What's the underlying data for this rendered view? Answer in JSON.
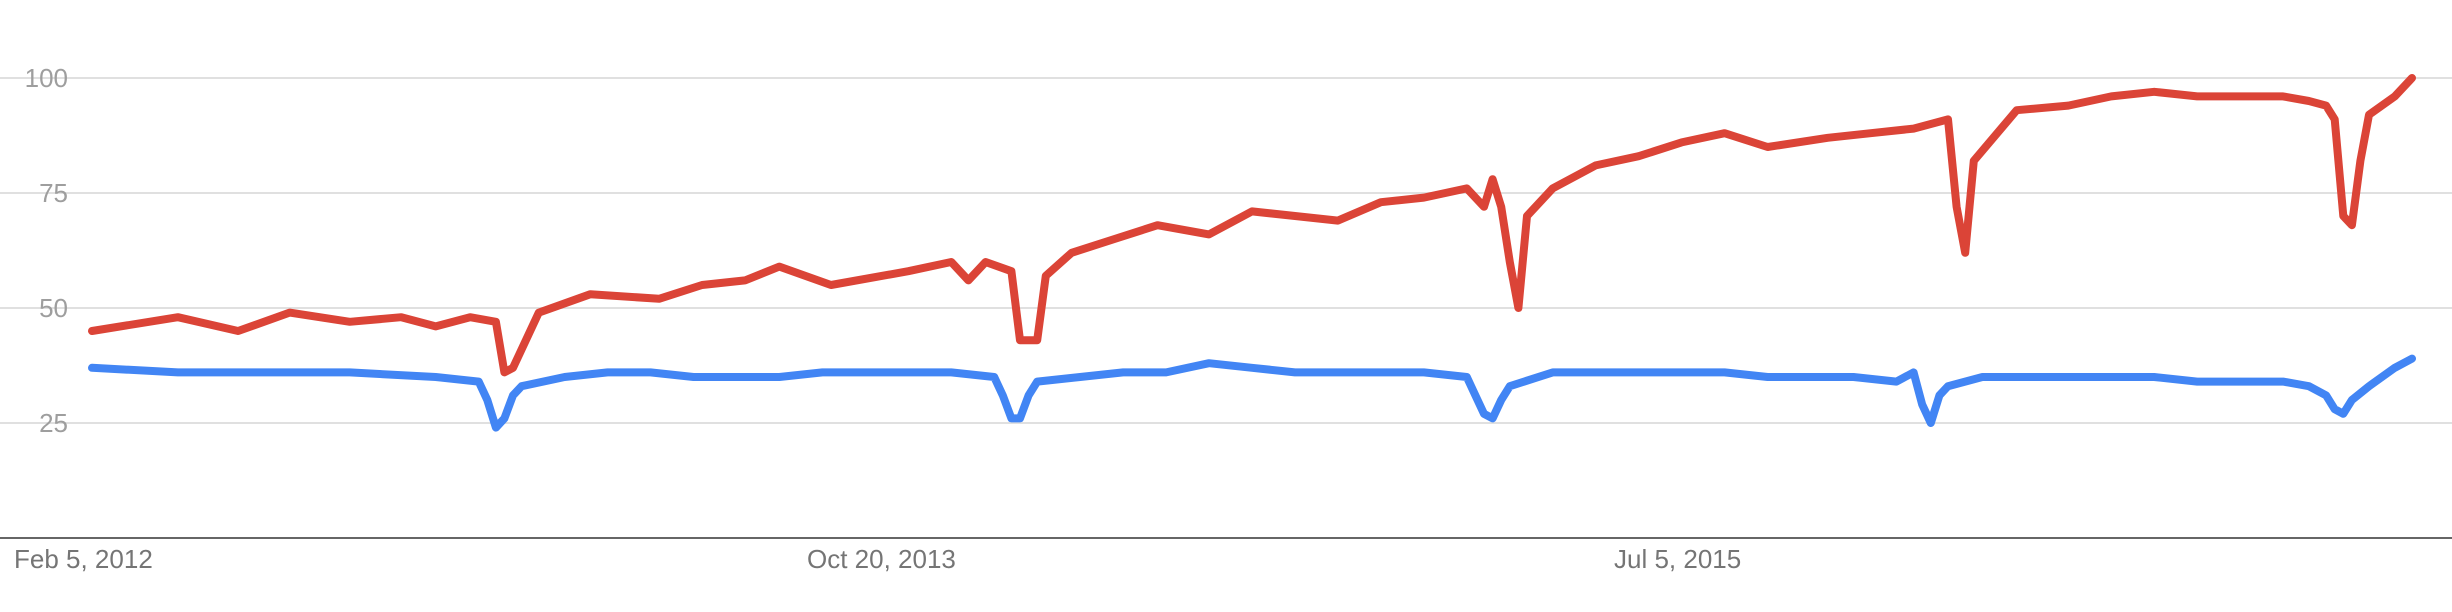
{
  "chart_data": {
    "type": "line",
    "ylim": [
      0,
      100
    ],
    "y_ticks": [
      25,
      50,
      75,
      100
    ],
    "grid": true,
    "x_tick_labels": [
      "Feb 5, 2012",
      "Oct 20, 2013",
      "Jul 5, 2015"
    ],
    "x_range_weeks": 270,
    "x_tick_weeks": [
      0,
      89,
      178
    ],
    "series": [
      {
        "color": "#db4437",
        "values": [
          [
            0,
            45
          ],
          [
            10,
            48
          ],
          [
            17,
            45
          ],
          [
            23,
            49
          ],
          [
            30,
            47
          ],
          [
            36,
            48
          ],
          [
            40,
            46
          ],
          [
            44,
            48
          ],
          [
            47,
            47
          ],
          [
            48,
            36
          ],
          [
            49,
            37
          ],
          [
            52,
            49
          ],
          [
            58,
            53
          ],
          [
            66,
            52
          ],
          [
            71,
            55
          ],
          [
            76,
            56
          ],
          [
            80,
            59
          ],
          [
            86,
            55
          ],
          [
            95,
            58
          ],
          [
            100,
            60
          ],
          [
            102,
            56
          ],
          [
            104,
            60
          ],
          [
            107,
            58
          ],
          [
            108,
            43
          ],
          [
            110,
            43
          ],
          [
            111,
            57
          ],
          [
            114,
            62
          ],
          [
            119,
            65
          ],
          [
            124,
            68
          ],
          [
            130,
            66
          ],
          [
            135,
            71
          ],
          [
            140,
            70
          ],
          [
            145,
            69
          ],
          [
            150,
            73
          ],
          [
            155,
            74
          ],
          [
            160,
            76
          ],
          [
            162,
            72
          ],
          [
            163,
            78
          ],
          [
            164,
            72
          ],
          [
            165,
            60
          ],
          [
            166,
            50
          ],
          [
            167,
            70
          ],
          [
            170,
            76
          ],
          [
            175,
            81
          ],
          [
            180,
            83
          ],
          [
            185,
            86
          ],
          [
            190,
            88
          ],
          [
            195,
            85
          ],
          [
            202,
            87
          ],
          [
            207,
            88
          ],
          [
            212,
            89
          ],
          [
            216,
            91
          ],
          [
            217,
            72
          ],
          [
            218,
            62
          ],
          [
            219,
            82
          ],
          [
            224,
            93
          ],
          [
            230,
            94
          ],
          [
            235,
            96
          ],
          [
            240,
            97
          ],
          [
            245,
            96
          ],
          [
            250,
            96
          ],
          [
            255,
            96
          ],
          [
            258,
            95
          ],
          [
            260,
            94
          ],
          [
            261,
            91
          ],
          [
            262,
            70
          ],
          [
            263,
            68
          ],
          [
            264,
            82
          ],
          [
            265,
            92
          ],
          [
            268,
            96
          ],
          [
            270,
            100
          ]
        ]
      },
      {
        "color": "#4285f4",
        "values": [
          [
            0,
            37
          ],
          [
            10,
            36
          ],
          [
            20,
            36
          ],
          [
            30,
            36
          ],
          [
            40,
            35
          ],
          [
            45,
            34
          ],
          [
            46,
            30
          ],
          [
            47,
            24
          ],
          [
            48,
            26
          ],
          [
            49,
            31
          ],
          [
            50,
            33
          ],
          [
            55,
            35
          ],
          [
            60,
            36
          ],
          [
            65,
            36
          ],
          [
            70,
            35
          ],
          [
            75,
            35
          ],
          [
            80,
            35
          ],
          [
            85,
            36
          ],
          [
            90,
            36
          ],
          [
            95,
            36
          ],
          [
            100,
            36
          ],
          [
            105,
            35
          ],
          [
            106,
            31
          ],
          [
            107,
            26
          ],
          [
            108,
            26
          ],
          [
            109,
            31
          ],
          [
            110,
            34
          ],
          [
            115,
            35
          ],
          [
            120,
            36
          ],
          [
            125,
            36
          ],
          [
            130,
            38
          ],
          [
            135,
            37
          ],
          [
            140,
            36
          ],
          [
            145,
            36
          ],
          [
            150,
            36
          ],
          [
            155,
            36
          ],
          [
            160,
            35
          ],
          [
            161,
            31
          ],
          [
            162,
            27
          ],
          [
            163,
            26
          ],
          [
            164,
            30
          ],
          [
            165,
            33
          ],
          [
            170,
            36
          ],
          [
            175,
            36
          ],
          [
            180,
            36
          ],
          [
            185,
            36
          ],
          [
            190,
            36
          ],
          [
            195,
            35
          ],
          [
            200,
            35
          ],
          [
            205,
            35
          ],
          [
            210,
            34
          ],
          [
            212,
            36
          ],
          [
            213,
            29
          ],
          [
            214,
            25
          ],
          [
            215,
            31
          ],
          [
            216,
            33
          ],
          [
            220,
            35
          ],
          [
            225,
            35
          ],
          [
            230,
            35
          ],
          [
            235,
            35
          ],
          [
            240,
            35
          ],
          [
            245,
            34
          ],
          [
            250,
            34
          ],
          [
            255,
            34
          ],
          [
            258,
            33
          ],
          [
            260,
            31
          ],
          [
            261,
            28
          ],
          [
            262,
            27
          ],
          [
            263,
            30
          ],
          [
            265,
            33
          ],
          [
            268,
            37
          ],
          [
            270,
            39
          ]
        ]
      }
    ]
  }
}
